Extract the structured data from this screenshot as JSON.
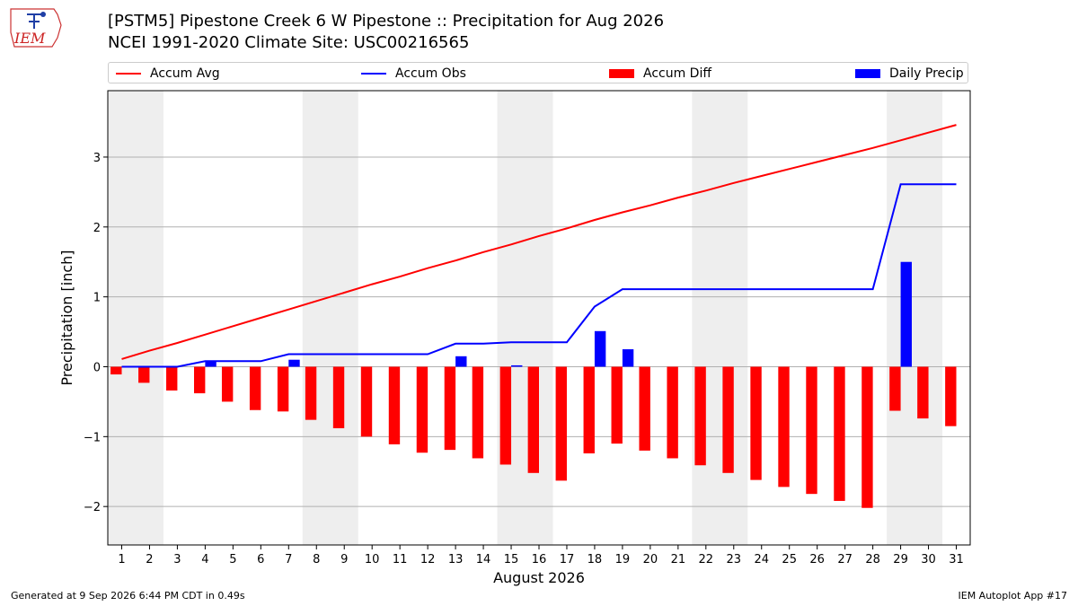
{
  "header": {
    "title_line1": "[PSTM5] Pipestone Creek 6 W Pipestone :: Precipitation for Aug 2026",
    "title_line2": "NCEI 1991-2020 Climate Site: USC00216565",
    "logo_text": "IEM"
  },
  "footer": {
    "generated": "Generated at 9 Sep 2026 6:44 PM CDT in 0.49s",
    "app": "IEM Autoplot App #17"
  },
  "colors": {
    "accum_avg": "#ff0000",
    "accum_obs": "#0000ff",
    "accum_diff": "#ff0000",
    "daily_precip": "#0000ff",
    "weekend_shade": "#eeeeee",
    "grid": "#b0b0b0"
  },
  "chart_data": {
    "type": "bar",
    "xlabel": "August 2026",
    "ylabel": "Precipitation [inch]",
    "ylim": [
      -2.55,
      3.95
    ],
    "yticks": [
      -2,
      -1,
      0,
      1,
      2,
      3
    ],
    "ytick_labels": [
      "−2",
      "−1",
      "0",
      "1",
      "2",
      "3"
    ],
    "grid": true,
    "legend_position": "top",
    "x": [
      1,
      2,
      3,
      4,
      5,
      6,
      7,
      8,
      9,
      10,
      11,
      12,
      13,
      14,
      15,
      16,
      17,
      18,
      19,
      20,
      21,
      22,
      23,
      24,
      25,
      26,
      27,
      28,
      29,
      30,
      31
    ],
    "x_labels": [
      "1",
      "2",
      "3",
      "4",
      "5",
      "6",
      "7",
      "8",
      "9",
      "10",
      "11",
      "12",
      "13",
      "14",
      "15",
      "16",
      "17",
      "18",
      "19",
      "20",
      "21",
      "22",
      "23",
      "24",
      "25",
      "26",
      "27",
      "28",
      "29",
      "30",
      "31"
    ],
    "shaded_days": [
      [
        1,
        2
      ],
      [
        8,
        9
      ],
      [
        15,
        16
      ],
      [
        22,
        23
      ],
      [
        29,
        30
      ]
    ],
    "series": [
      {
        "name": "Accum Avg",
        "kind": "line",
        "values": [
          0.11,
          0.23,
          0.34,
          0.46,
          0.58,
          0.7,
          0.82,
          0.94,
          1.06,
          1.18,
          1.29,
          1.41,
          1.52,
          1.64,
          1.75,
          1.87,
          1.98,
          2.1,
          2.21,
          2.31,
          2.42,
          2.52,
          2.63,
          2.73,
          2.83,
          2.93,
          3.03,
          3.13,
          3.24,
          3.35,
          3.46
        ]
      },
      {
        "name": "Accum Obs",
        "kind": "line",
        "values": [
          0.0,
          0.0,
          0.0,
          0.08,
          0.08,
          0.08,
          0.18,
          0.18,
          0.18,
          0.18,
          0.18,
          0.18,
          0.33,
          0.33,
          0.35,
          0.35,
          0.35,
          0.86,
          1.11,
          1.11,
          1.11,
          1.11,
          1.11,
          1.11,
          1.11,
          1.11,
          1.11,
          1.11,
          2.61,
          2.61,
          2.61
        ]
      },
      {
        "name": "Accum Diff",
        "kind": "bar",
        "values": [
          -0.11,
          -0.23,
          -0.34,
          -0.38,
          -0.5,
          -0.62,
          -0.64,
          -0.76,
          -0.88,
          -1.0,
          -1.11,
          -1.23,
          -1.19,
          -1.31,
          -1.4,
          -1.52,
          -1.63,
          -1.24,
          -1.1,
          -1.2,
          -1.31,
          -1.41,
          -1.52,
          -1.62,
          -1.72,
          -1.82,
          -1.92,
          -2.02,
          -0.63,
          -0.74,
          -0.85
        ]
      },
      {
        "name": "Daily Precip",
        "kind": "bar",
        "values": [
          0,
          0,
          0,
          0.08,
          0,
          0,
          0.1,
          0,
          0,
          0,
          0,
          0,
          0.15,
          0,
          0.02,
          0,
          0,
          0.51,
          0.25,
          0,
          0,
          0,
          0,
          0,
          0,
          0,
          0,
          0,
          1.5,
          0,
          0
        ]
      }
    ]
  }
}
